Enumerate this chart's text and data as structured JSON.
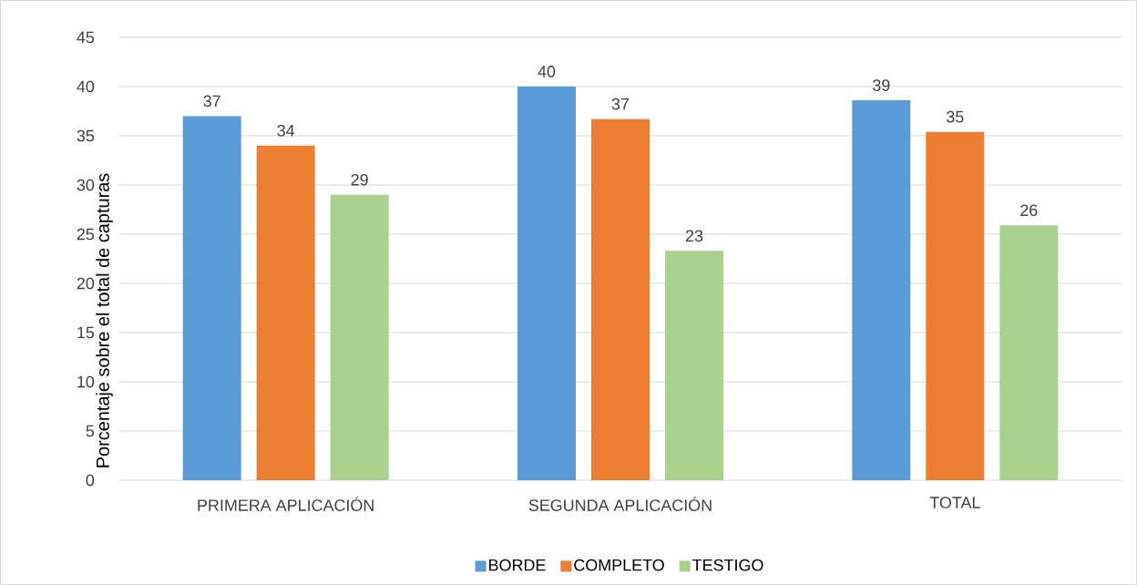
{
  "chart_data": {
    "type": "bar",
    "ylabel": "Porcentaje sobre el total de capturas",
    "categories": [
      "PRIMERA APLICACIÓN",
      "SEGUNDA APLICACIÓN",
      "TOTAL"
    ],
    "series": [
      {
        "name": "BORDE",
        "color": "#5b9bd5",
        "values": [
          37,
          40,
          38.6
        ],
        "value_labels": [
          "37",
          "40",
          "39"
        ]
      },
      {
        "name": "COMPLETO",
        "color": "#ed7d31",
        "values": [
          34,
          36.7,
          35.4
        ],
        "value_labels": [
          "34",
          "37",
          "35"
        ]
      },
      {
        "name": "TESTIGO",
        "color": "#a9d18e",
        "values": [
          29,
          23.3,
          25.9
        ],
        "value_labels": [
          "29",
          "23",
          "26"
        ]
      }
    ],
    "ylim": [
      0,
      45
    ],
    "yticks": [
      0,
      5,
      10,
      15,
      20,
      25,
      30,
      35,
      40,
      45
    ],
    "grid": "y",
    "legend": "bottom"
  }
}
